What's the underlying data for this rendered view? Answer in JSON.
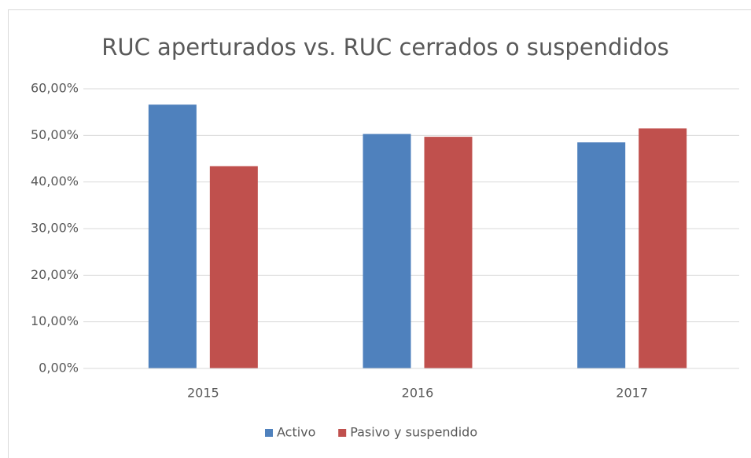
{
  "chart_data": {
    "type": "bar",
    "title": "RUC aperturados vs. RUC cerrados o suspendidos",
    "categories": [
      "2015",
      "2016",
      "2017"
    ],
    "series": [
      {
        "name": "Activo",
        "color": "#4f81bd",
        "values": [
          56.6,
          50.3,
          48.5
        ]
      },
      {
        "name": "Pasivo y suspendido",
        "color": "#c0504d",
        "values": [
          43.4,
          49.7,
          51.5
        ]
      }
    ],
    "ylim": [
      0,
      60
    ],
    "yticks": [
      {
        "value": 0,
        "label": "0,00%"
      },
      {
        "value": 10,
        "label": "10,00%"
      },
      {
        "value": 20,
        "label": "20,00%"
      },
      {
        "value": 30,
        "label": "30,00%"
      },
      {
        "value": 40,
        "label": "40,00%"
      },
      {
        "value": 50,
        "label": "50,00%"
      },
      {
        "value": 60,
        "label": "60,00%"
      }
    ],
    "grid": true,
    "legend": "bottom"
  }
}
